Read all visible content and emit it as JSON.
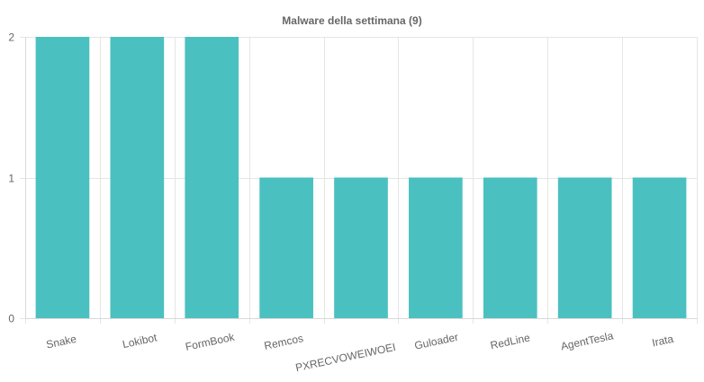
{
  "chart_data": {
    "type": "bar",
    "title": "Malware della settimana (9)",
    "xlabel": "",
    "ylabel": "",
    "categories": [
      "Snake",
      "Lokibot",
      "FormBook",
      "Remcos",
      "PXRECVOWEIWOEI",
      "Guloader",
      "RedLine",
      "AgentTesla",
      "Irata"
    ],
    "values": [
      2,
      2,
      2,
      1,
      1,
      1,
      1,
      1,
      1
    ],
    "ylim": [
      0,
      2
    ],
    "yticks": [
      0,
      1,
      2
    ],
    "grid": true,
    "legend": "none",
    "bar_color": "#4bc0c0"
  }
}
